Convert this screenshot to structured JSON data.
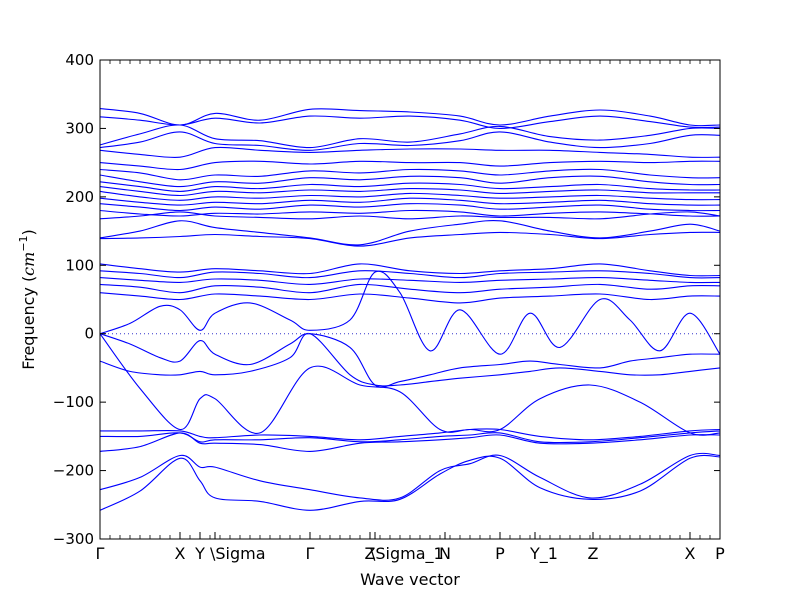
{
  "chart_data": {
    "type": "line",
    "xlabel": "Wave vector",
    "ylabel": "Frequency (",
    "ylabel_math": "cm",
    "ylabel_exp": "−1",
    "ylabel_close": ")",
    "ylim": [
      -300,
      400
    ],
    "yticks": [
      400,
      300,
      200,
      100,
      0,
      -100,
      -200,
      -300
    ],
    "xlim": [
      0,
      6.2
    ],
    "xtick_labels": [
      {
        "label": "Γ",
        "x": 0.0
      },
      {
        "label": "X",
        "x": 0.8
      },
      {
        "label": "Y",
        "x": 1.0
      },
      {
        "label": "\\Sigma",
        "x": 1.15
      },
      {
        "label": "Γ",
        "x": 2.1
      },
      {
        "label": "Z",
        "x": 2.7
      },
      {
        "label": "\\Sigma_1",
        "x": 2.75
      },
      {
        "label": "N",
        "x": 3.45
      },
      {
        "label": "P",
        "x": 4.0
      },
      {
        "label": "Y_1",
        "x": 4.35
      },
      {
        "label": "Z",
        "x": 4.93
      },
      {
        "label": "X",
        "x": 5.9
      },
      {
        "label": "P",
        "x": 6.2
      }
    ],
    "zero_line": true,
    "line_color": "#0000ff",
    "zero_line_color": "#3333cc",
    "series": [
      {
        "x": [
          0,
          0.4,
          0.8,
          1.15,
          1.6,
          2.1,
          2.6,
          3.1,
          3.6,
          4.0,
          4.5,
          5.0,
          5.5,
          5.9,
          6.2
        ],
        "y": [
          329,
          322,
          305,
          322,
          312,
          328,
          326,
          324,
          318,
          305,
          318,
          327,
          318,
          305,
          305
        ]
      },
      {
        "x": [
          0,
          0.4,
          0.8,
          1.15,
          1.6,
          2.1,
          2.6,
          3.1,
          3.6,
          4.0,
          4.5,
          5.0,
          5.5,
          5.9,
          6.2
        ],
        "y": [
          317,
          312,
          305,
          315,
          308,
          318,
          315,
          318,
          312,
          300,
          310,
          318,
          310,
          302,
          302
        ]
      },
      {
        "x": [
          0,
          0.4,
          0.8,
          1.15,
          1.6,
          2.1,
          2.6,
          3.1,
          3.6,
          4.0,
          4.5,
          5.0,
          5.5,
          5.9,
          6.2
        ],
        "y": [
          276,
          292,
          305,
          285,
          282,
          272,
          285,
          280,
          292,
          303,
          288,
          283,
          290,
          300,
          300
        ]
      },
      {
        "x": [
          0,
          0.4,
          0.8,
          1.15,
          1.6,
          2.1,
          2.6,
          3.1,
          3.6,
          4.0,
          4.5,
          5.0,
          5.5,
          5.9,
          6.2
        ],
        "y": [
          272,
          280,
          295,
          278,
          275,
          268,
          278,
          275,
          282,
          295,
          280,
          272,
          278,
          290,
          290
        ]
      },
      {
        "x": [
          0,
          0.4,
          0.8,
          1.15,
          1.6,
          2.1,
          2.6,
          3.1,
          3.6,
          4.0,
          4.5,
          5.0,
          5.5,
          5.9,
          6.2
        ],
        "y": [
          268,
          262,
          258,
          272,
          268,
          265,
          268,
          270,
          270,
          268,
          268,
          265,
          262,
          258,
          258
        ]
      },
      {
        "x": [
          0,
          0.4,
          0.8,
          1.15,
          1.6,
          2.1,
          2.6,
          3.1,
          3.6,
          4.0,
          4.5,
          5.0,
          5.5,
          5.9,
          6.2
        ],
        "y": [
          250,
          245,
          240,
          250,
          252,
          248,
          252,
          250,
          250,
          245,
          250,
          252,
          250,
          252,
          252
        ]
      },
      {
        "x": [
          0,
          0.4,
          0.8,
          1.15,
          1.6,
          2.1,
          2.6,
          3.1,
          3.6,
          4.0,
          4.5,
          5.0,
          5.5,
          5.9,
          6.2
        ],
        "y": [
          240,
          235,
          225,
          232,
          230,
          238,
          235,
          240,
          238,
          232,
          238,
          240,
          232,
          228,
          228
        ]
      },
      {
        "x": [
          0,
          0.4,
          0.8,
          1.15,
          1.6,
          2.1,
          2.6,
          3.1,
          3.6,
          4.0,
          4.5,
          5.0,
          5.5,
          5.9,
          6.2
        ],
        "y": [
          232,
          222,
          215,
          222,
          220,
          228,
          225,
          230,
          228,
          220,
          228,
          230,
          222,
          218,
          218
        ]
      },
      {
        "x": [
          0,
          0.4,
          0.8,
          1.15,
          1.6,
          2.1,
          2.6,
          3.1,
          3.6,
          4.0,
          4.5,
          5.0,
          5.5,
          5.9,
          6.2
        ],
        "y": [
          222,
          215,
          208,
          215,
          212,
          218,
          215,
          220,
          218,
          212,
          215,
          218,
          212,
          210,
          210
        ]
      },
      {
        "x": [
          0,
          0.4,
          0.8,
          1.15,
          1.6,
          2.1,
          2.6,
          3.1,
          3.6,
          4.0,
          4.5,
          5.0,
          5.5,
          5.9,
          6.2
        ],
        "y": [
          215,
          208,
          202,
          208,
          206,
          210,
          208,
          212,
          210,
          205,
          208,
          210,
          206,
          206,
          206
        ]
      },
      {
        "x": [
          0,
          0.4,
          0.8,
          1.15,
          1.6,
          2.1,
          2.6,
          3.1,
          3.6,
          4.0,
          4.5,
          5.0,
          5.5,
          5.9,
          6.2
        ],
        "y": [
          208,
          200,
          195,
          200,
          198,
          202,
          200,
          205,
          202,
          198,
          200,
          202,
          198,
          196,
          196
        ]
      },
      {
        "x": [
          0,
          0.4,
          0.8,
          1.15,
          1.6,
          2.1,
          2.6,
          3.1,
          3.6,
          4.0,
          4.5,
          5.0,
          5.5,
          5.9,
          6.2
        ],
        "y": [
          198,
          192,
          188,
          192,
          190,
          195,
          192,
          198,
          195,
          190,
          192,
          195,
          190,
          188,
          188
        ]
      },
      {
        "x": [
          0,
          0.4,
          0.8,
          1.15,
          1.6,
          2.1,
          2.6,
          3.1,
          3.6,
          4.0,
          4.5,
          5.0,
          5.5,
          5.9,
          6.2
        ],
        "y": [
          190,
          185,
          180,
          185,
          182,
          188,
          185,
          190,
          188,
          182,
          185,
          188,
          182,
          180,
          180
        ]
      },
      {
        "x": [
          0,
          0.4,
          0.8,
          1.15,
          1.6,
          2.1,
          2.6,
          3.1,
          3.6,
          4.0,
          4.5,
          5.0,
          5.5,
          5.9,
          6.2
        ],
        "y": [
          180,
          175,
          172,
          176,
          175,
          178,
          176,
          180,
          178,
          172,
          176,
          178,
          175,
          172,
          172
        ]
      },
      {
        "x": [
          0,
          0.4,
          0.8,
          1.15,
          1.6,
          2.1,
          2.6,
          3.1,
          3.6,
          4.0,
          4.5,
          5.0,
          5.5,
          5.9,
          6.2
        ],
        "y": [
          168,
          172,
          178,
          172,
          170,
          168,
          172,
          168,
          172,
          170,
          170,
          168,
          175,
          178,
          172
        ]
      },
      {
        "x": [
          0,
          0.4,
          0.8,
          1.15,
          1.6,
          2.1,
          2.6,
          3.1,
          3.6,
          4.0,
          4.5,
          5.0,
          5.5,
          5.9,
          6.2
        ],
        "y": [
          140,
          150,
          165,
          155,
          148,
          140,
          130,
          150,
          160,
          165,
          150,
          140,
          150,
          160,
          150
        ]
      },
      {
        "x": [
          0,
          0.4,
          0.8,
          1.15,
          1.6,
          2.1,
          2.6,
          3.1,
          3.6,
          4.0,
          4.5,
          5.0,
          5.5,
          5.9,
          6.2
        ],
        "y": [
          139,
          140,
          142,
          145,
          142,
          139,
          128,
          140,
          145,
          148,
          145,
          139,
          145,
          148,
          148
        ]
      },
      {
        "x": [
          0,
          0.4,
          0.8,
          1.15,
          1.6,
          2.1,
          2.6,
          3.1,
          3.6,
          4.0,
          4.5,
          5.0,
          5.5,
          5.9,
          6.2
        ],
        "y": [
          102,
          95,
          90,
          95,
          92,
          88,
          102,
          92,
          88,
          92,
          95,
          102,
          92,
          85,
          85
        ]
      },
      {
        "x": [
          0,
          0.4,
          0.8,
          1.15,
          1.6,
          2.1,
          2.6,
          3.1,
          3.6,
          4.0,
          4.5,
          5.0,
          5.5,
          5.9,
          6.2
        ],
        "y": [
          92,
          88,
          82,
          90,
          88,
          82,
          92,
          88,
          82,
          88,
          90,
          92,
          88,
          82,
          82
        ]
      },
      {
        "x": [
          0,
          0.4,
          0.8,
          1.15,
          1.6,
          2.1,
          2.6,
          3.1,
          3.6,
          4.0,
          4.5,
          5.0,
          5.5,
          5.9,
          6.2
        ],
        "y": [
          82,
          78,
          75,
          80,
          78,
          72,
          80,
          78,
          75,
          78,
          80,
          82,
          78,
          75,
          75
        ]
      },
      {
        "x": [
          0,
          0.4,
          0.8,
          1.15,
          1.6,
          2.1,
          2.6,
          3.1,
          3.6,
          4.0,
          4.5,
          5.0,
          5.5,
          5.9,
          6.2
        ],
        "y": [
          72,
          68,
          60,
          70,
          68,
          60,
          72,
          65,
          60,
          65,
          68,
          72,
          65,
          70,
          70
        ]
      },
      {
        "x": [
          0,
          0.4,
          0.8,
          1.15,
          1.6,
          2.1,
          2.6,
          3.1,
          3.6,
          4.0,
          4.5,
          5.0,
          5.5,
          5.9,
          6.2
        ],
        "y": [
          60,
          55,
          50,
          58,
          55,
          50,
          58,
          52,
          45,
          52,
          55,
          58,
          50,
          55,
          55
        ]
      },
      {
        "x": [
          0,
          0.3,
          0.6,
          0.8,
          1.0,
          1.15,
          1.5,
          1.9,
          2.1,
          2.5,
          2.75,
          3.0,
          3.3,
          3.6,
          4.0,
          4.3,
          4.6,
          5.0,
          5.3,
          5.6,
          5.9,
          6.2
        ],
        "y": [
          0,
          15,
          40,
          35,
          5,
          30,
          45,
          20,
          5,
          20,
          90,
          60,
          -25,
          35,
          -30,
          30,
          -20,
          50,
          20,
          -25,
          30,
          -30
        ]
      },
      {
        "x": [
          0,
          0.3,
          0.6,
          0.8,
          1.0,
          1.15,
          1.5,
          1.9,
          2.1,
          2.5,
          2.75,
          3.0,
          3.3,
          3.6,
          4.0,
          4.3,
          4.6,
          5.0,
          5.3,
          5.6,
          5.9,
          6.2
        ],
        "y": [
          0,
          -15,
          -35,
          -40,
          -10,
          -30,
          -45,
          -15,
          0,
          -20,
          -75,
          -70,
          -60,
          -50,
          -45,
          -40,
          -45,
          -50,
          -40,
          -35,
          -30,
          -30
        ]
      },
      {
        "x": [
          0,
          0.3,
          0.6,
          0.8,
          1.0,
          1.15,
          1.5,
          1.9,
          2.1,
          2.5,
          2.75,
          3.0,
          3.3,
          3.6,
          4.0,
          4.3,
          4.6,
          5.0,
          5.3,
          5.6,
          5.9,
          6.2
        ],
        "y": [
          -40,
          -55,
          -60,
          -60,
          -55,
          -60,
          -55,
          -35,
          0,
          -60,
          -75,
          -75,
          -70,
          -65,
          -60,
          -55,
          -50,
          -55,
          -60,
          -60,
          -55,
          -50
        ]
      },
      {
        "x": [
          0,
          0.4,
          0.8,
          1.0,
          1.15,
          1.6,
          2.1,
          2.6,
          3.0,
          3.4,
          3.7,
          4.0,
          4.4,
          4.9,
          5.4,
          5.9,
          6.2
        ],
        "y": [
          0,
          -80,
          -140,
          -95,
          -95,
          -145,
          -50,
          -75,
          -85,
          -140,
          -140,
          -140,
          -95,
          -75,
          -100,
          -145,
          -145
        ]
      },
      {
        "x": [
          0,
          0.4,
          0.8,
          1.0,
          1.15,
          1.6,
          2.1,
          2.6,
          3.0,
          3.4,
          3.7,
          4.0,
          4.4,
          4.9,
          5.4,
          5.9,
          6.2
        ],
        "y": [
          -142,
          -142,
          -142,
          -150,
          -152,
          -148,
          -150,
          -155,
          -150,
          -145,
          -140,
          -140,
          -150,
          -155,
          -150,
          -142,
          -140
        ]
      },
      {
        "x": [
          0,
          0.4,
          0.8,
          1.0,
          1.15,
          1.6,
          2.1,
          2.6,
          3.0,
          3.4,
          3.7,
          4.0,
          4.4,
          4.9,
          5.4,
          5.9,
          6.2
        ],
        "y": [
          -150,
          -150,
          -145,
          -158,
          -155,
          -155,
          -152,
          -158,
          -155,
          -150,
          -148,
          -145,
          -158,
          -158,
          -152,
          -145,
          -142
        ]
      },
      {
        "x": [
          0,
          0.4,
          0.8,
          1.0,
          1.15,
          1.6,
          2.1,
          2.6,
          3.0,
          3.4,
          3.7,
          4.0,
          4.4,
          4.9,
          5.4,
          5.9,
          6.2
        ],
        "y": [
          -172,
          -165,
          -145,
          -160,
          -160,
          -162,
          -172,
          -160,
          -158,
          -155,
          -152,
          -148,
          -160,
          -160,
          -155,
          -148,
          -148
        ]
      },
      {
        "x": [
          0,
          0.4,
          0.8,
          1.0,
          1.15,
          1.6,
          2.1,
          2.6,
          3.0,
          3.4,
          3.7,
          4.0,
          4.4,
          4.9,
          5.4,
          5.9,
          6.2
        ],
        "y": [
          -228,
          -210,
          -178,
          -195,
          -195,
          -215,
          -228,
          -240,
          -240,
          -200,
          -190,
          -178,
          -210,
          -240,
          -220,
          -178,
          -178
        ]
      },
      {
        "x": [
          0,
          0.4,
          0.8,
          1.0,
          1.15,
          1.6,
          2.1,
          2.6,
          3.0,
          3.4,
          3.7,
          4.0,
          4.4,
          4.9,
          5.4,
          5.9,
          6.2
        ],
        "y": [
          -258,
          -230,
          -182,
          -215,
          -240,
          -245,
          -258,
          -245,
          -242,
          -205,
          -185,
          -182,
          -225,
          -242,
          -230,
          -182,
          -180
        ]
      }
    ]
  }
}
